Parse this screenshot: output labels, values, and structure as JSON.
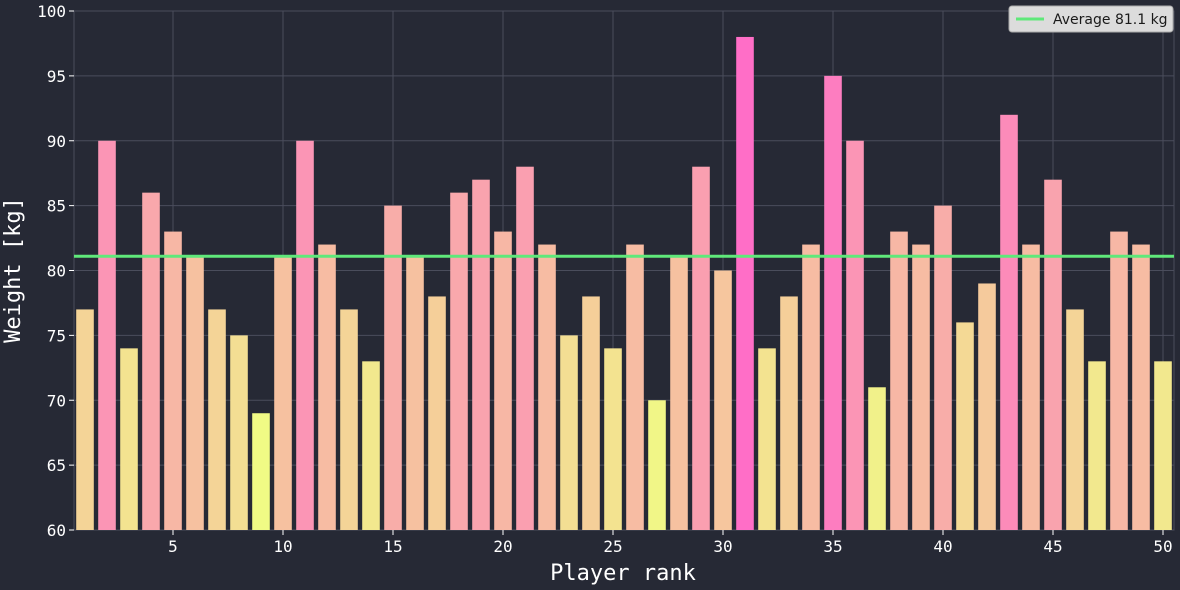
{
  "chart_data": {
    "type": "bar",
    "xlabel": "Player rank",
    "ylabel": "Weight [kg]",
    "ylim": [
      60,
      100
    ],
    "xlim": [
      0.5,
      50.5
    ],
    "yticks": [
      60,
      65,
      70,
      75,
      80,
      85,
      90,
      95,
      100
    ],
    "xticks": [
      5,
      10,
      15,
      20,
      25,
      30,
      35,
      40,
      45,
      50
    ],
    "grid": true,
    "legend_position": "top-right",
    "x": [
      1,
      2,
      3,
      4,
      5,
      6,
      7,
      8,
      9,
      10,
      11,
      12,
      13,
      14,
      15,
      16,
      17,
      18,
      19,
      20,
      21,
      22,
      23,
      24,
      25,
      26,
      27,
      28,
      29,
      30,
      31,
      32,
      33,
      34,
      35,
      36,
      37,
      38,
      39,
      40,
      41,
      42,
      43,
      44,
      45,
      46,
      47,
      48,
      49,
      50
    ],
    "values": [
      77,
      90,
      74,
      86,
      83,
      81,
      77,
      75,
      69,
      81,
      90,
      82,
      77,
      73,
      85,
      81,
      78,
      86,
      87,
      83,
      88,
      82,
      75,
      78,
      74,
      82,
      70,
      81,
      88,
      80,
      98,
      74,
      78,
      82,
      95,
      90,
      71,
      83,
      82,
      85,
      76,
      79,
      92,
      82,
      87,
      77,
      73,
      83,
      82,
      73
    ],
    "average": {
      "value": 81.1,
      "label": "Average 81.1 kg",
      "color": "#5fe87a"
    },
    "colormap": {
      "low": "#f0fb85",
      "high": "#ff6ec7"
    },
    "colors": {
      "background": "#262935",
      "grid": "#4a4d5c",
      "text": "#ffffff",
      "legend_bg": "#dcdcdc"
    }
  }
}
